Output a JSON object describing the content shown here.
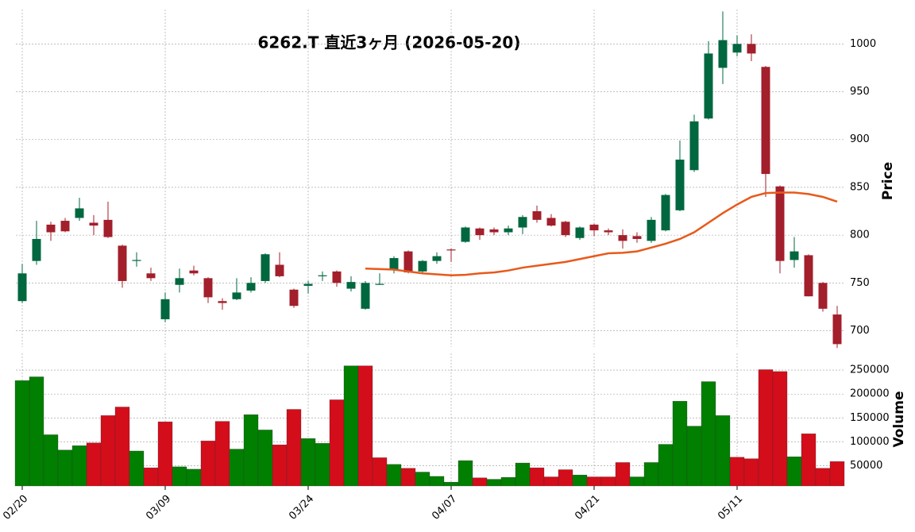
{
  "chart_data": {
    "type": "candlestick",
    "title": "6262.T  直近3ヶ月 (2026-05-20)",
    "categories": [
      "02/20",
      null,
      null,
      null,
      null,
      null,
      null,
      null,
      null,
      null,
      "03/09",
      null,
      null,
      null,
      null,
      null,
      null,
      null,
      null,
      null,
      "03/24",
      null,
      null,
      null,
      null,
      null,
      null,
      null,
      null,
      null,
      "04/07",
      null,
      null,
      null,
      null,
      null,
      null,
      null,
      null,
      null,
      "04/21",
      null,
      null,
      null,
      null,
      null,
      null,
      null,
      null,
      null,
      "05/11",
      null,
      null,
      null,
      null,
      null,
      null,
      null
    ],
    "open": [
      731,
      773,
      811,
      815,
      818,
      813,
      816,
      789,
      773,
      760,
      712,
      748,
      763,
      755,
      731,
      733,
      742,
      752,
      769,
      743,
      747,
      757,
      762,
      744,
      723,
      748,
      764,
      783,
      762,
      773,
      785,
      793,
      807,
      806,
      803,
      808,
      825,
      818,
      814,
      797,
      811,
      805,
      800,
      799,
      794,
      805,
      826,
      868,
      922,
      975,
      991,
      1000,
      976,
      851,
      774,
      779,
      750,
      717
    ],
    "high": [
      770,
      815,
      814,
      818,
      839,
      821,
      835,
      790,
      782,
      766,
      740,
      765,
      768,
      756,
      734,
      755,
      756,
      781,
      782,
      744,
      752,
      762,
      763,
      757,
      752,
      760,
      778,
      784,
      774,
      782,
      786,
      809,
      808,
      808,
      810,
      821,
      831,
      822,
      815,
      809,
      812,
      807,
      806,
      803,
      819,
      843,
      899,
      926,
      1003,
      1034,
      1009,
      1010,
      977,
      852,
      798,
      780,
      751,
      726
    ],
    "low": [
      729,
      769,
      794,
      803,
      815,
      800,
      797,
      745,
      767,
      752,
      709,
      740,
      758,
      729,
      722,
      732,
      740,
      750,
      756,
      724,
      739,
      752,
      746,
      741,
      722,
      748,
      760,
      760,
      760,
      770,
      772,
      792,
      795,
      800,
      800,
      801,
      813,
      809,
      798,
      795,
      799,
      800,
      786,
      792,
      792,
      804,
      825,
      866,
      921,
      958,
      987,
      982,
      840,
      760,
      766,
      736,
      720,
      682
    ],
    "close": [
      760,
      796,
      803,
      804,
      828,
      810,
      798,
      752,
      774,
      755,
      733,
      755,
      760,
      735,
      729,
      740,
      750,
      780,
      757,
      726,
      749,
      758,
      750,
      751,
      750,
      749,
      776,
      761,
      773,
      778,
      784,
      808,
      800,
      803,
      807,
      819,
      816,
      810,
      800,
      808,
      805,
      803,
      794,
      796,
      816,
      842,
      879,
      919,
      990,
      1004,
      1000,
      990,
      864,
      773,
      783,
      736,
      723,
      686
    ],
    "up_color": "#00673f",
    "down_color": "#a21f2b",
    "ylabel": "Price",
    "ylim": [
      683,
      1036
    ],
    "yticks": [
      700,
      750,
      800,
      850,
      900,
      950,
      1000
    ],
    "grid": true,
    "ma": {
      "color": "#e8591a",
      "values": [
        null,
        null,
        null,
        null,
        null,
        null,
        null,
        null,
        null,
        null,
        null,
        null,
        null,
        null,
        null,
        null,
        null,
        null,
        null,
        null,
        null,
        null,
        null,
        null,
        765,
        764.5,
        764,
        762,
        760,
        759,
        758,
        758.5,
        760,
        761,
        763,
        766,
        768,
        770,
        772,
        775,
        778,
        781,
        781.5,
        783,
        787,
        791,
        796,
        803,
        813,
        823,
        832,
        840,
        844,
        844.5,
        844.5,
        843,
        840,
        835
      ]
    },
    "volume": {
      "ylabel": "Volume",
      "up_color": "#007f00",
      "down_color": "#d40d1a",
      "ylim": [
        8000,
        285000
      ],
      "yticks": [
        50000,
        100000,
        150000,
        200000,
        250000
      ],
      "values": [
        228000,
        236000,
        115000,
        83000,
        92000,
        98000,
        155000,
        173000,
        81000,
        46000,
        142000,
        48000,
        43000,
        102000,
        143000,
        85000,
        157000,
        125000,
        94000,
        168000,
        107000,
        97000,
        188000,
        259000,
        259000,
        67000,
        53000,
        45000,
        37000,
        28000,
        16000,
        61000,
        25000,
        22000,
        26000,
        56000,
        46000,
        27000,
        42000,
        31000,
        27000,
        27000,
        57000,
        27000,
        57000,
        95000,
        185000,
        133000,
        226000,
        155000,
        68000,
        65000,
        251000,
        247000,
        69000,
        117000,
        45000,
        59000
      ]
    }
  }
}
